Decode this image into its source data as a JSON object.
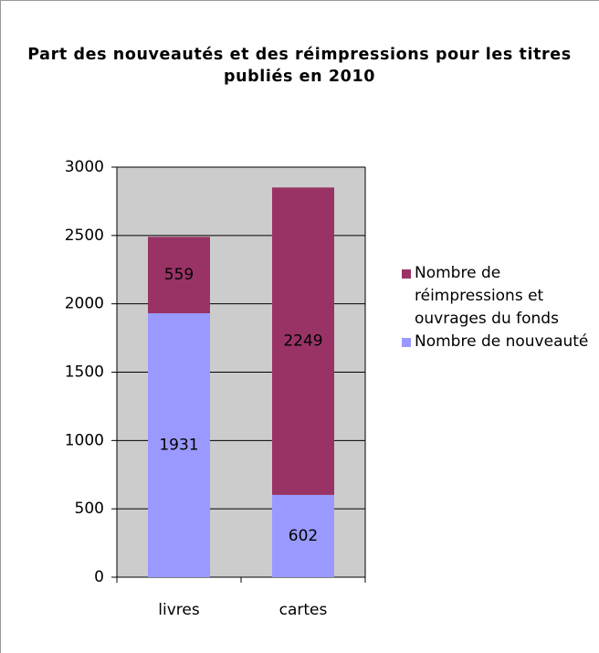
{
  "chart_data": {
    "type": "bar",
    "stacked": true,
    "title": "Part des nouveautés et des réimpressions pour les titres publiés en 2010",
    "categories": [
      "livres",
      "cartes"
    ],
    "series": [
      {
        "name": "Nombre de nouveauté",
        "color": "#9999ff",
        "values": [
          1931,
          602
        ]
      },
      {
        "name": "Nombre de réimpressions et ouvrages du fonds",
        "color": "#993366",
        "values": [
          559,
          2249
        ]
      }
    ],
    "ylim": [
      0,
      3000
    ],
    "yticks": [
      0,
      500,
      1000,
      1500,
      2000,
      2500,
      3000
    ],
    "grid": true,
    "legend": "right"
  }
}
